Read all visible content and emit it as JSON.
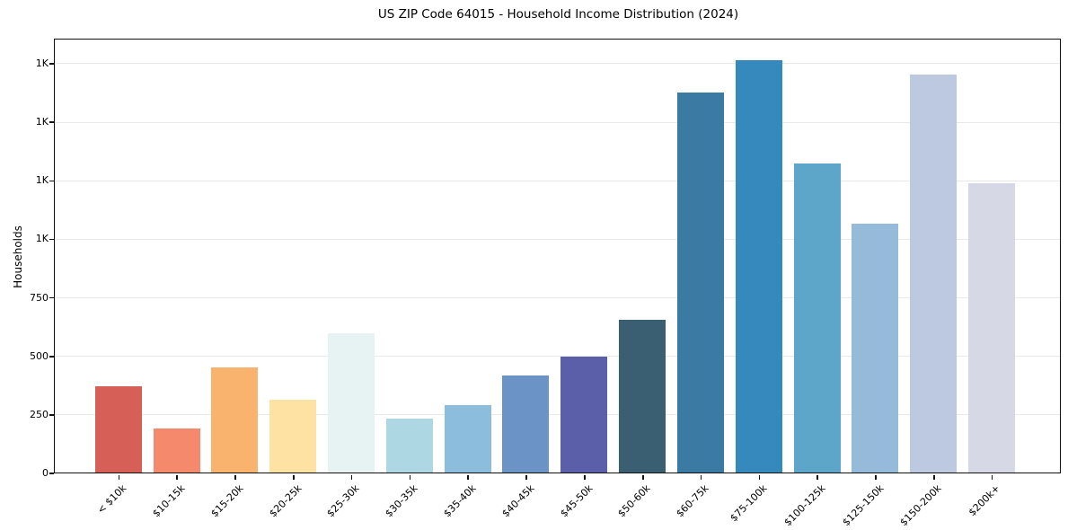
{
  "figure": {
    "background": "#ffffff",
    "axis_color": "#111111",
    "grid_color": "#e9e9e9"
  },
  "chart_data": {
    "type": "bar",
    "title": "US ZIP Code 64015 - Household Income Distribution (2024)",
    "xlabel": "",
    "ylabel": "Households",
    "ylim": [
      0,
      1850
    ],
    "grid": "horizontal",
    "legend": "none",
    "categories": [
      "< $10k",
      "$10-15k",
      "$15-20k",
      "$20-25k",
      "$25-30k",
      "$30-35k",
      "$35-40k",
      "$40-45k",
      "$45-50k",
      "$50-60k",
      "$60-75k",
      "$75-100k",
      "$100-125k",
      "$125-150k",
      "$150-200k",
      "$200k+"
    ],
    "values": [
      370,
      188,
      450,
      312,
      596,
      232,
      290,
      416,
      498,
      655,
      1627,
      1762,
      1322,
      1064,
      1701,
      1236
    ],
    "bar_colors": [
      "#d65f57",
      "#f48a6b",
      "#fab36e",
      "#fde2a3",
      "#e7f3f2",
      "#aed7e4",
      "#8dbddc",
      "#6b93c5",
      "#5b5fa9",
      "#3a5f73",
      "#3a7aa3",
      "#3589bc",
      "#5ea6c9",
      "#96bbda",
      "#bcc9e1",
      "#d7d8e6"
    ],
    "yticks": [
      {
        "value": 0,
        "label": "0"
      },
      {
        "value": 250,
        "label": "250"
      },
      {
        "value": 500,
        "label": "500"
      },
      {
        "value": 750,
        "label": "750"
      },
      {
        "value": 1000,
        "label": "1K"
      },
      {
        "value": 1250,
        "label": "1K"
      },
      {
        "value": 1500,
        "label": "1K"
      },
      {
        "value": 1750,
        "label": "1K"
      }
    ]
  }
}
